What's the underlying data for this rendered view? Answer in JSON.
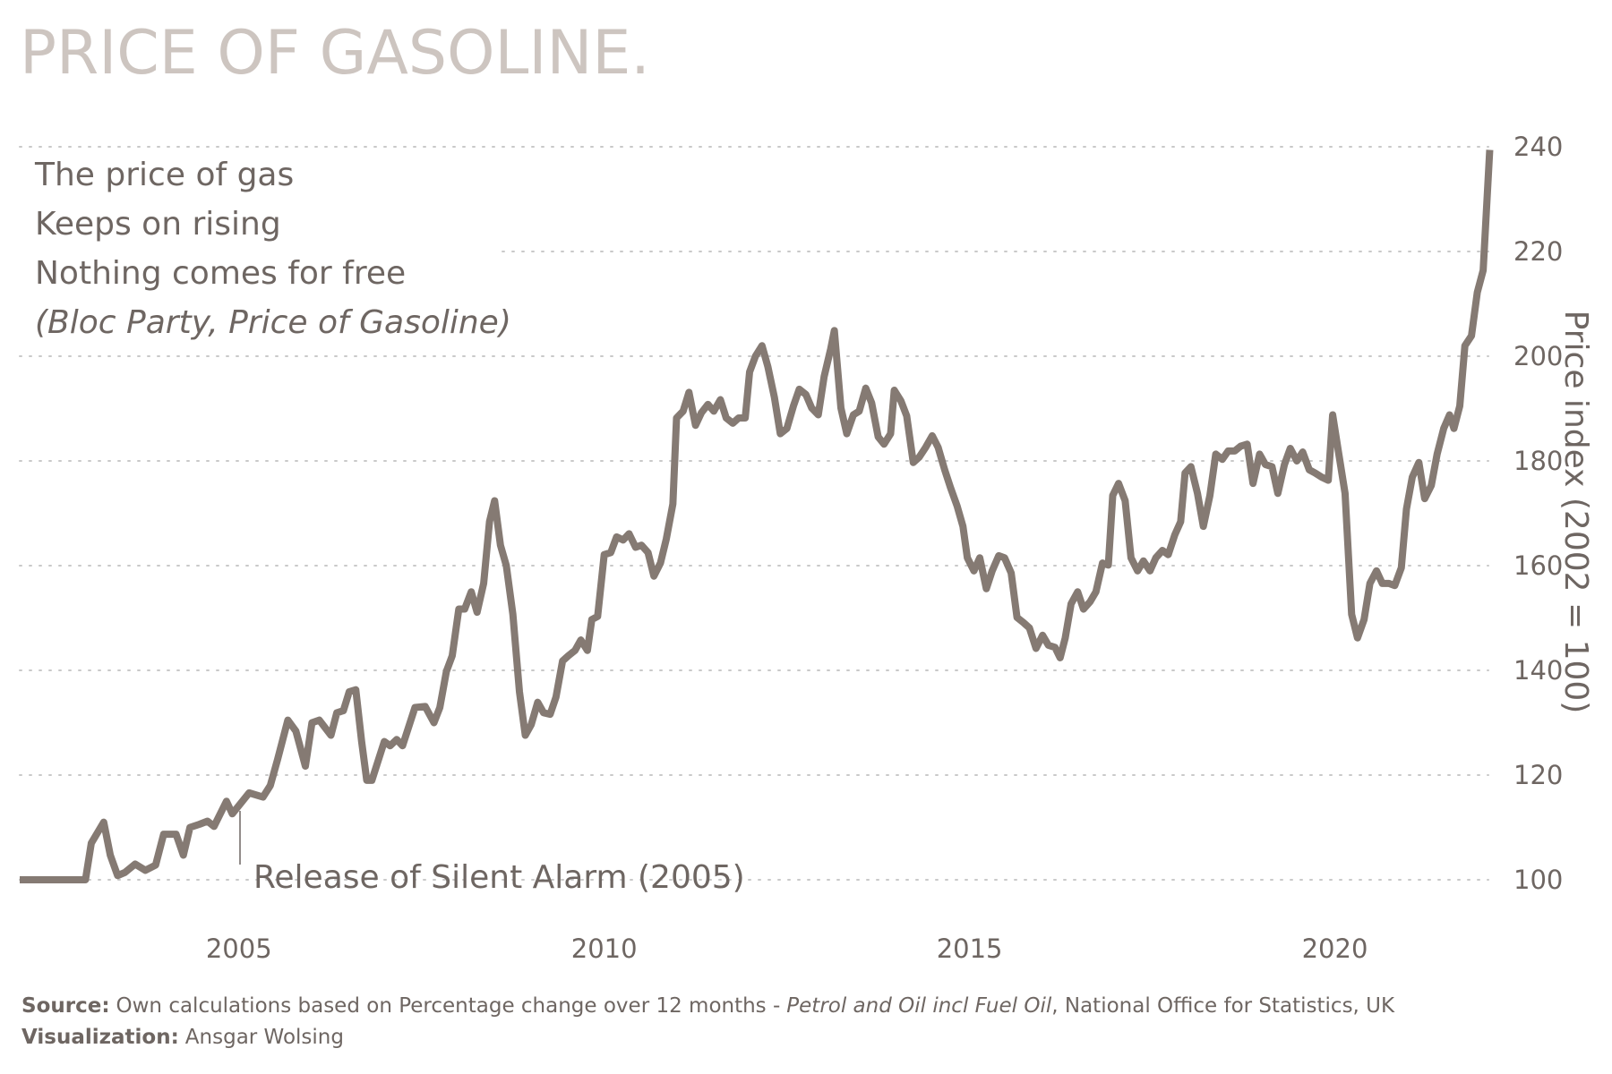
{
  "chart_data": {
    "type": "line",
    "title": "PRICE OF GASOLINE.",
    "poem": [
      "The price of gas",
      "Keeps on rising",
      "Nothing comes for free"
    ],
    "poem_credit": "(Bloc Party, Price of Gasoline)",
    "annotation": "Release of Silent Alarm (2005)",
    "y_label": "Price index (2002 = 100)",
    "source_label": "Source:",
    "source_text": "Own calculations based on Percentage change over 12 months -",
    "source_italic": "Petrol and Oil incl Fuel Oil",
    "source_end": ", National Office for Statistics, UK",
    "credit_label": "Visualization:",
    "credit_text": "Ansgar Wolsing",
    "color": "#857a73",
    "grid": true,
    "xlim": [
      2002,
      2022.2
    ],
    "xticks": [
      2005,
      2010,
      2015,
      2020
    ],
    "ylim": [
      100,
      240
    ],
    "yticks": [
      100,
      120,
      140,
      160,
      180,
      200,
      220,
      240
    ],
    "x": [
      2002.0,
      2002.9,
      2002.98,
      2003.15,
      2003.24,
      2003.34,
      2003.44,
      2003.58,
      2003.72,
      2003.86,
      2003.97,
      2004.14,
      2004.24,
      2004.33,
      2004.46,
      2004.57,
      2004.66,
      2004.83,
      2004.91,
      2005.14,
      2005.33,
      2005.43,
      2005.53,
      2005.67,
      2005.78,
      2005.91,
      2006.0,
      2006.1,
      2006.26,
      2006.34,
      2006.43,
      2006.51,
      2006.6,
      2006.68,
      2006.75,
      2006.82,
      2006.99,
      2007.07,
      2007.16,
      2007.24,
      2007.41,
      2007.55,
      2007.67,
      2007.75,
      2007.84,
      2007.92,
      2008.01,
      2008.09,
      2008.18,
      2008.26,
      2008.35,
      2008.43,
      2008.5,
      2008.58,
      2008.66,
      2008.75,
      2008.84,
      2008.92,
      2009.0,
      2009.09,
      2009.17,
      2009.26,
      2009.34,
      2009.43,
      2009.51,
      2009.6,
      2009.68,
      2009.77,
      2009.83,
      2009.91,
      2010.0,
      2010.09,
      2010.17,
      2010.26,
      2010.34,
      2010.43,
      2010.51,
      2010.6,
      2010.68,
      2010.77,
      2010.85,
      2010.94,
      2010.99,
      2011.08,
      2011.16,
      2011.25,
      2011.33,
      2011.42,
      2011.5,
      2011.59,
      2011.67,
      2011.76,
      2011.84,
      2011.93,
      2011.99,
      2012.07,
      2012.16,
      2012.24,
      2012.33,
      2012.41,
      2012.5,
      2012.59,
      2012.67,
      2012.76,
      2012.84,
      2012.93,
      2013.01,
      2013.1,
      2013.15,
      2013.24,
      2013.32,
      2013.41,
      2013.49,
      2013.58,
      2013.66,
      2013.75,
      2013.83,
      2013.92,
      2013.97,
      2014.06,
      2014.14,
      2014.23,
      2014.31,
      2014.4,
      2014.49,
      2014.57,
      2014.66,
      2014.74,
      2014.83,
      2014.91,
      2014.97,
      2015.06,
      2015.14,
      2015.23,
      2015.31,
      2015.4,
      2015.48,
      2015.57,
      2015.65,
      2015.74,
      2015.82,
      2015.91,
      2016.0,
      2016.08,
      2016.17,
      2016.24,
      2016.31,
      2016.39,
      2016.48,
      2016.56,
      2016.65,
      2016.73,
      2016.82,
      2016.9,
      2016.96,
      2017.04,
      2017.13,
      2017.21,
      2017.3,
      2017.38,
      2017.47,
      2017.55,
      2017.64,
      2017.72,
      2017.81,
      2017.89,
      2017.95,
      2018.03,
      2018.12,
      2018.2,
      2018.29,
      2018.37,
      2018.46,
      2018.54,
      2018.63,
      2018.71,
      2018.8,
      2018.88,
      2018.97,
      2019.05,
      2019.14,
      2019.22,
      2019.31,
      2019.39,
      2019.48,
      2019.56,
      2019.65,
      2019.73,
      2019.82,
      2019.91,
      2019.97,
      2020.05,
      2020.14,
      2020.23,
      2020.31,
      2020.4,
      2020.48,
      2020.57,
      2020.65,
      2020.74,
      2020.82,
      2020.91,
      2020.98,
      2021.06,
      2021.15,
      2021.23,
      2021.32,
      2021.4,
      2021.49,
      2021.57,
      2021.63,
      2021.71,
      2021.78,
      2021.87,
      2021.95,
      2022.03,
      2022.12
    ],
    "values": [
      100,
      100,
      107,
      111,
      104.7,
      100.8,
      101.4,
      103,
      101.8,
      102.8,
      108.7,
      108.7,
      104.7,
      110,
      110.6,
      111.2,
      110.2,
      115,
      112.6,
      116.6,
      115.8,
      118,
      123,
      130.5,
      128.4,
      121.7,
      130,
      130.5,
      127.6,
      131.9,
      132.3,
      135.9,
      136.3,
      126.4,
      119,
      119,
      126.4,
      125.6,
      126.8,
      125.6,
      132.9,
      133.1,
      130,
      132.9,
      139.8,
      142.8,
      151.7,
      151.7,
      155,
      151.1,
      156.6,
      168.4,
      172.4,
      163.9,
      160,
      150.7,
      135.9,
      127.6,
      129.6,
      133.9,
      131.9,
      131.6,
      134.9,
      141.8,
      142.8,
      143.8,
      145.8,
      143.8,
      149.7,
      150.3,
      162.1,
      162.5,
      165.5,
      164.9,
      166.1,
      163.5,
      163.9,
      162.5,
      158,
      160.5,
      165.1,
      171.8,
      188.2,
      189.5,
      193.1,
      186.8,
      189.2,
      190.8,
      189.5,
      191.7,
      188.2,
      187.2,
      188.2,
      188.2,
      197,
      200,
      202,
      198,
      192.1,
      185.2,
      186.2,
      190.5,
      193.7,
      192.7,
      190.1,
      188.8,
      196.1,
      201.4,
      204.9,
      190.1,
      185.2,
      188.8,
      189.5,
      193.9,
      191.1,
      184.6,
      183.2,
      185.2,
      193.5,
      191.5,
      188.6,
      179.7,
      180.7,
      182.6,
      184.8,
      182.6,
      178.3,
      174.9,
      171.4,
      167.5,
      161.5,
      159,
      161.5,
      155.6,
      159,
      161.9,
      161.5,
      158.6,
      150.1,
      149.1,
      148.1,
      144.2,
      146.7,
      144.8,
      144.4,
      142.4,
      146.2,
      152.7,
      155,
      151.7,
      153.1,
      155,
      160.5,
      160.1,
      173.4,
      175.7,
      172.4,
      161.5,
      159,
      160.9,
      159,
      161.5,
      162.9,
      162.1,
      165.9,
      168.4,
      177.7,
      178.9,
      173.8,
      167.5,
      173.4,
      181.3,
      180.3,
      181.9,
      181.9,
      182.8,
      183.2,
      175.7,
      181.3,
      179.3,
      178.9,
      173.8,
      179.3,
      182.4,
      180,
      181.7,
      178.3,
      177.7,
      176.9,
      176.3,
      188.8,
      181.7,
      173.8,
      150.7,
      146.2,
      149.7,
      156.6,
      159,
      156.6,
      156.6,
      156.2,
      159.6,
      170.8,
      176.9,
      179.7,
      172.8,
      175.3,
      181.3,
      186.2,
      188.8,
      186.2,
      190.5,
      202,
      203.9,
      212.2,
      216.4,
      239.4
    ]
  }
}
